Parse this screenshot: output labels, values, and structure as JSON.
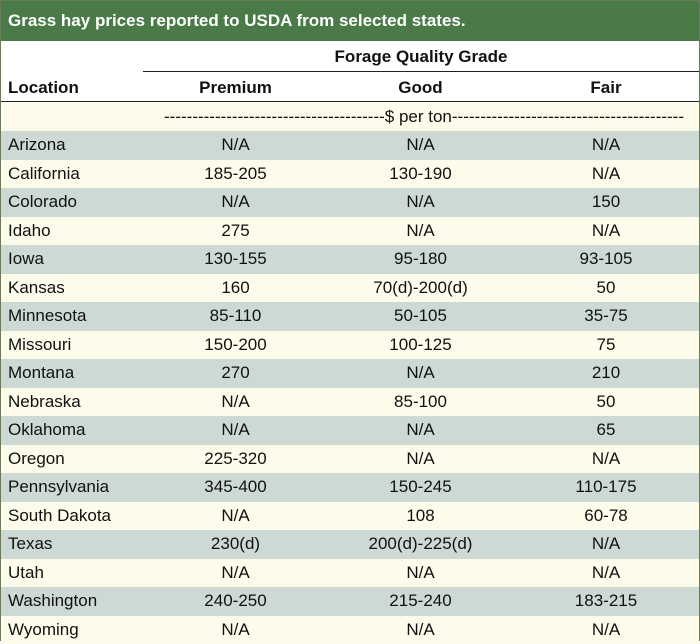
{
  "title": "Grass hay prices reported to USDA from selected states.",
  "header": {
    "group_label": "Forage Quality Grade",
    "location_label": "Location",
    "columns": [
      "Premium",
      "Good",
      "Fair"
    ],
    "unit_label": "---------------------------------------$ per ton-----------------------------------------"
  },
  "rows": [
    {
      "location": "Arizona",
      "premium": "N/A",
      "good": "N/A",
      "fair": "N/A"
    },
    {
      "location": "California",
      "premium": "185-205",
      "good": "130-190",
      "fair": "N/A"
    },
    {
      "location": "Colorado",
      "premium": "N/A",
      "good": "N/A",
      "fair": "150"
    },
    {
      "location": "Idaho",
      "premium": "275",
      "good": "N/A",
      "fair": "N/A"
    },
    {
      "location": "Iowa",
      "premium": "130-155",
      "good": "95-180",
      "fair": "93-105"
    },
    {
      "location": "Kansas",
      "premium": "160",
      "good": "70(d)-200(d)",
      "fair": "50"
    },
    {
      "location": "Minnesota",
      "premium": "85-110",
      "good": "50-105",
      "fair": "35-75"
    },
    {
      "location": "Missouri",
      "premium": "150-200",
      "good": "100-125",
      "fair": "75"
    },
    {
      "location": "Montana",
      "premium": "270",
      "good": "N/A",
      "fair": "210"
    },
    {
      "location": "Nebraska",
      "premium": "N/A",
      "good": "85-100",
      "fair": "50"
    },
    {
      "location": "Oklahoma",
      "premium": "N/A",
      "good": "N/A",
      "fair": "65"
    },
    {
      "location": "Oregon",
      "premium": "225-320",
      "good": "N/A",
      "fair": "N/A"
    },
    {
      "location": "Pennsylvania",
      "premium": "345-400",
      "good": "150-245",
      "fair": "110-175"
    },
    {
      "location": "South Dakota",
      "premium": "N/A",
      "good": "108",
      "fair": "60-78"
    },
    {
      "location": "Texas",
      "premium": "230(d)",
      "good": "200(d)-225(d)",
      "fair": "N/A"
    },
    {
      "location": "Utah",
      "premium": "N/A",
      "good": "N/A",
      "fair": "N/A"
    },
    {
      "location": "Washington",
      "premium": "240-250",
      "good": "215-240",
      "fair": "183-215"
    },
    {
      "location": "Wyoming",
      "premium": "N/A",
      "good": "N/A",
      "fair": "N/A"
    }
  ],
  "colors": {
    "title_background": "#4a7a48",
    "row_shaded": "#ccd9d4",
    "row_plain": "#fdfbea"
  }
}
